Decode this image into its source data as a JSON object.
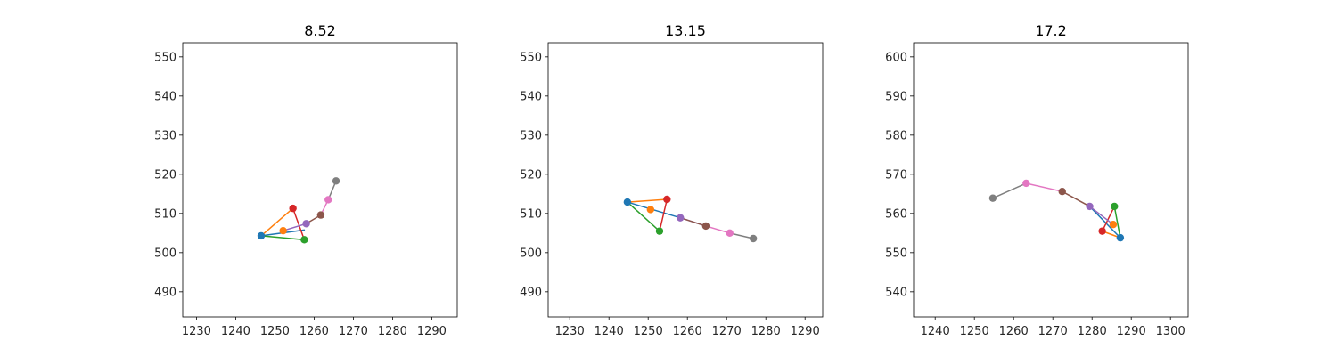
{
  "chart_data": [
    {
      "type": "line",
      "title": "8.52",
      "xlabel": "",
      "ylabel": "",
      "xlim": [
        1226.5,
        1296.5
      ],
      "ylim": [
        483.6,
        553.6
      ],
      "xticks": [
        1230,
        1240,
        1250,
        1260,
        1270,
        1280,
        1290
      ],
      "yticks": [
        490,
        500,
        510,
        520,
        530,
        540,
        550
      ],
      "grid": false,
      "segments": [
        {
          "color": "#1f77b4",
          "x": [
            1246.5,
            1257.5
          ],
          "y": [
            504.3,
            505.8
          ]
        },
        {
          "color": "#ff7f0e",
          "x": [
            1246.5,
            1254.6
          ],
          "y": [
            504.3,
            511.3
          ]
        },
        {
          "color": "#2ca02c",
          "x": [
            1246.5,
            1257.5
          ],
          "y": [
            504.3,
            503.3
          ]
        },
        {
          "color": "#d62728",
          "x": [
            1254.6,
            1257.5
          ],
          "y": [
            511.3,
            503.3
          ]
        },
        {
          "color": "#9467bd",
          "x": [
            1252.1,
            1258.0
          ],
          "y": [
            505.6,
            507.4
          ]
        },
        {
          "color": "#8c564b",
          "x": [
            1258.0,
            1261.7
          ],
          "y": [
            507.4,
            509.6
          ]
        },
        {
          "color": "#e377c2",
          "x": [
            1261.7,
            1263.6
          ],
          "y": [
            509.6,
            513.5
          ]
        },
        {
          "color": "#7f7f7f",
          "x": [
            1263.6,
            1265.6
          ],
          "y": [
            513.5,
            518.3
          ]
        }
      ],
      "points": [
        {
          "color": "#1f77b4",
          "x": 1246.5,
          "y": 504.3
        },
        {
          "color": "#ff7f0e",
          "x": 1252.1,
          "y": 505.6
        },
        {
          "color": "#2ca02c",
          "x": 1257.5,
          "y": 503.3
        },
        {
          "color": "#d62728",
          "x": 1254.6,
          "y": 511.3
        },
        {
          "color": "#9467bd",
          "x": 1258.0,
          "y": 507.4
        },
        {
          "color": "#8c564b",
          "x": 1261.7,
          "y": 509.6
        },
        {
          "color": "#e377c2",
          "x": 1263.6,
          "y": 513.5
        },
        {
          "color": "#7f7f7f",
          "x": 1265.6,
          "y": 518.3
        }
      ]
    },
    {
      "type": "line",
      "title": "13.15",
      "xlabel": "",
      "ylabel": "",
      "xlim": [
        1224.5,
        1294.5
      ],
      "ylim": [
        483.6,
        553.6
      ],
      "xticks": [
        1230,
        1240,
        1250,
        1260,
        1270,
        1280,
        1290
      ],
      "yticks": [
        490,
        500,
        510,
        520,
        530,
        540,
        550
      ],
      "grid": false,
      "segments": [
        {
          "color": "#1f77b4",
          "x": [
            1244.7,
            1258.2
          ],
          "y": [
            512.9,
            508.9
          ]
        },
        {
          "color": "#ff7f0e",
          "x": [
            1244.7,
            1254.8
          ],
          "y": [
            512.9,
            513.6
          ]
        },
        {
          "color": "#2ca02c",
          "x": [
            1244.7,
            1252.9
          ],
          "y": [
            512.9,
            505.5
          ]
        },
        {
          "color": "#d62728",
          "x": [
            1254.8,
            1252.9
          ],
          "y": [
            513.6,
            505.5
          ]
        },
        {
          "color": "#9467bd",
          "x": [
            1258.2,
            1264.7
          ],
          "y": [
            508.9,
            506.8
          ]
        },
        {
          "color": "#8c564b",
          "x": [
            1258.2,
            1264.7
          ],
          "y": [
            508.9,
            506.8
          ]
        },
        {
          "color": "#e377c2",
          "x": [
            1264.7,
            1270.8
          ],
          "y": [
            506.8,
            505.0
          ]
        },
        {
          "color": "#7f7f7f",
          "x": [
            1270.8,
            1276.8
          ],
          "y": [
            505.0,
            503.6
          ]
        }
      ],
      "points": [
        {
          "color": "#1f77b4",
          "x": 1244.7,
          "y": 512.9
        },
        {
          "color": "#ff7f0e",
          "x": 1250.6,
          "y": 511.0
        },
        {
          "color": "#2ca02c",
          "x": 1252.9,
          "y": 505.5
        },
        {
          "color": "#d62728",
          "x": 1254.8,
          "y": 513.6
        },
        {
          "color": "#9467bd",
          "x": 1258.2,
          "y": 508.9
        },
        {
          "color": "#8c564b",
          "x": 1264.7,
          "y": 506.8
        },
        {
          "color": "#e377c2",
          "x": 1270.8,
          "y": 505.0
        },
        {
          "color": "#7f7f7f",
          "x": 1276.8,
          "y": 503.6
        }
      ]
    },
    {
      "type": "line",
      "title": "17.2",
      "xlabel": "",
      "ylabel": "",
      "xlim": [
        1234.5,
        1304.5
      ],
      "ylim": [
        533.6,
        603.6
      ],
      "xticks": [
        1240,
        1250,
        1260,
        1270,
        1280,
        1290,
        1300
      ],
      "yticks": [
        540,
        550,
        560,
        570,
        580,
        590,
        600
      ],
      "grid": false,
      "segments": [
        {
          "color": "#1f77b4",
          "x": [
            1287.2,
            1279.4
          ],
          "y": [
            553.8,
            561.8
          ]
        },
        {
          "color": "#ff7f0e",
          "x": [
            1287.2,
            1282.6
          ],
          "y": [
            553.8,
            555.5
          ]
        },
        {
          "color": "#2ca02c",
          "x": [
            1287.2,
            1285.7
          ],
          "y": [
            553.8,
            561.8
          ]
        },
        {
          "color": "#d62728",
          "x": [
            1282.6,
            1285.7
          ],
          "y": [
            555.5,
            561.8
          ]
        },
        {
          "color": "#9467bd",
          "x": [
            1285.4,
            1279.4
          ],
          "y": [
            557.2,
            561.8
          ]
        },
        {
          "color": "#8c564b",
          "x": [
            1279.4,
            1272.4
          ],
          "y": [
            561.8,
            565.6
          ]
        },
        {
          "color": "#e377c2",
          "x": [
            1272.4,
            1263.2
          ],
          "y": [
            565.6,
            567.7
          ]
        },
        {
          "color": "#7f7f7f",
          "x": [
            1263.2,
            1254.7
          ],
          "y": [
            567.7,
            563.9
          ]
        }
      ],
      "points": [
        {
          "color": "#1f77b4",
          "x": 1287.2,
          "y": 553.8
        },
        {
          "color": "#ff7f0e",
          "x": 1285.4,
          "y": 557.2
        },
        {
          "color": "#2ca02c",
          "x": 1285.7,
          "y": 561.8
        },
        {
          "color": "#d62728",
          "x": 1282.6,
          "y": 555.5
        },
        {
          "color": "#9467bd",
          "x": 1279.4,
          "y": 561.8
        },
        {
          "color": "#8c564b",
          "x": 1272.4,
          "y": 565.6
        },
        {
          "color": "#e377c2",
          "x": 1263.2,
          "y": 567.7
        },
        {
          "color": "#7f7f7f",
          "x": 1254.7,
          "y": 563.9
        }
      ]
    }
  ]
}
